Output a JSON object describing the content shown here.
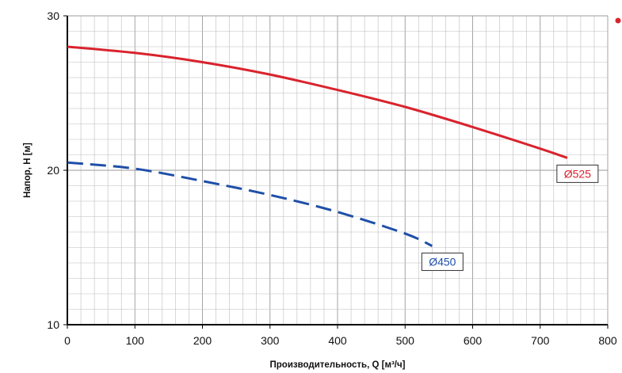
{
  "chart_data": {
    "type": "line",
    "title": "",
    "xlabel": "Производительность, Q [м³/ч]",
    "ylabel": "Напор, Н [м]",
    "xlim": [
      0,
      800
    ],
    "ylim": [
      10,
      30
    ],
    "x_ticks": [
      "0",
      "100",
      "200",
      "300",
      "400",
      "500",
      "600",
      "700",
      "800"
    ],
    "y_ticks": [
      "10",
      "20",
      "30"
    ],
    "x_minor_step": 20,
    "y_minor_step": 1,
    "grid": true,
    "series": [
      {
        "name": "Ø525",
        "color": "#d9232d",
        "line_style": "solid",
        "x": [
          0,
          100,
          200,
          300,
          400,
          500,
          600,
          700,
          740
        ],
        "y": [
          28.0,
          27.6,
          27.0,
          26.2,
          25.2,
          24.1,
          22.8,
          21.4,
          20.8
        ]
      },
      {
        "name": "Ø450",
        "color": "#1f4fa8",
        "line_style": "dashed",
        "x": [
          0,
          100,
          200,
          300,
          400,
          500,
          540
        ],
        "y": [
          20.5,
          20.1,
          19.3,
          18.4,
          17.3,
          15.9,
          15.1
        ]
      }
    ],
    "legend": {
      "dot_color": "#d9232d"
    }
  }
}
